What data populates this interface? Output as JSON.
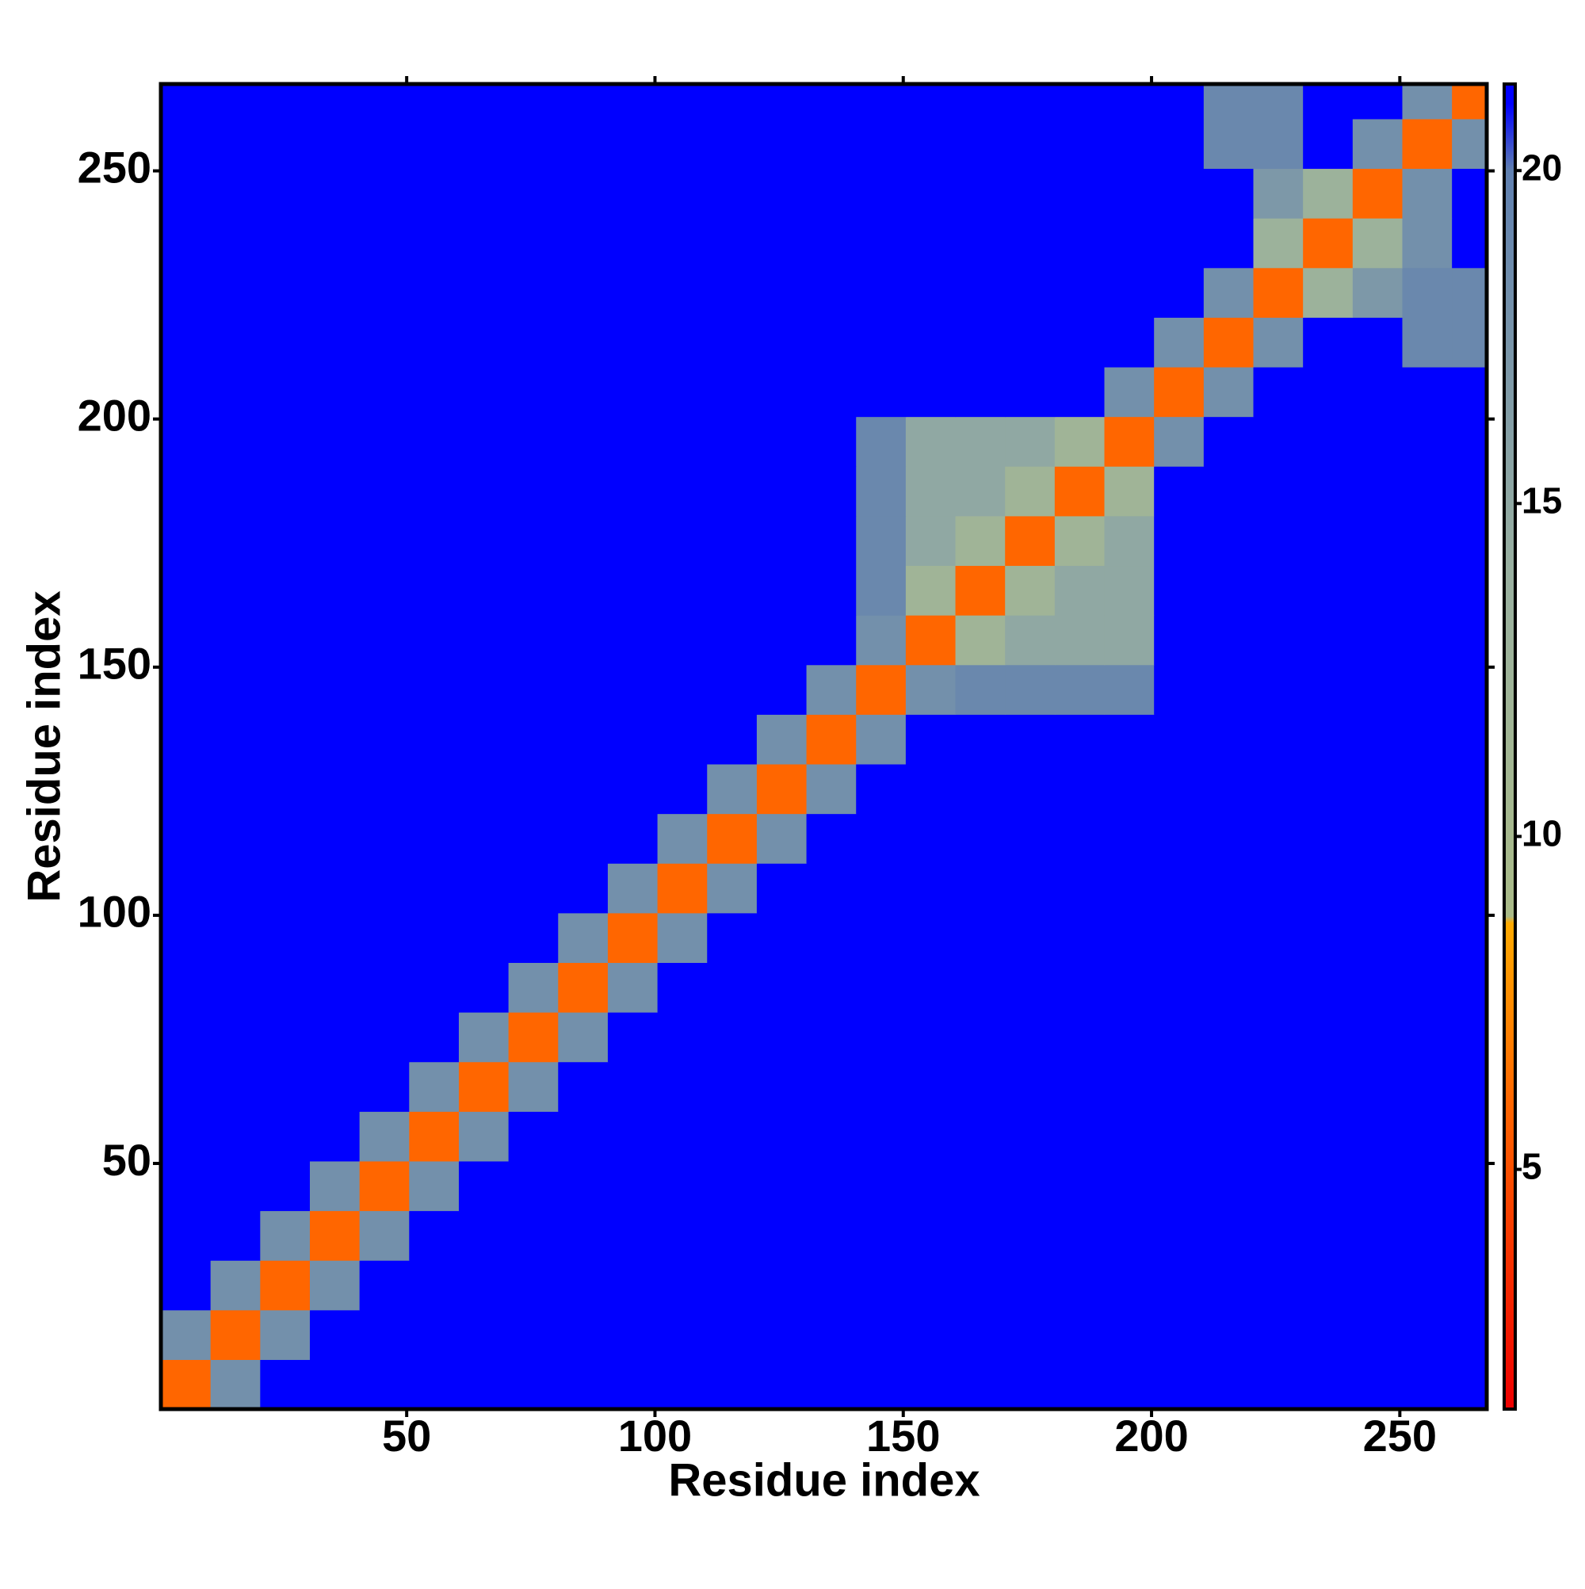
{
  "chart_data": {
    "type": "heatmap",
    "xlabel": "Residue index",
    "ylabel": "Residue index",
    "xlim": [
      0.5,
      267.5
    ],
    "ylim": [
      0.5,
      267.5
    ],
    "xticks": [
      50,
      100,
      150,
      200,
      250
    ],
    "yticks": [
      50,
      100,
      150,
      200,
      250
    ],
    "clim": [
      1.4,
      21.3
    ],
    "cticks": [
      5,
      10,
      15,
      20
    ],
    "colorscale": [
      [
        1.4,
        "#ee0000"
      ],
      [
        6,
        "#ff6600"
      ],
      [
        8.7,
        "#ffaa00"
      ],
      [
        8.8,
        "#aabb88"
      ],
      [
        14,
        "#99b0a0"
      ],
      [
        20,
        "#6080b0"
      ],
      [
        21,
        "#0000ff"
      ]
    ],
    "x_bins": [
      0.5,
      10.5,
      20.5,
      30.5,
      40.5,
      50.5,
      60.5,
      70.5,
      80.5,
      90.5,
      100.5,
      110.5,
      120.5,
      130.5,
      140.5,
      150.5,
      160.5,
      170.5,
      180.5,
      190.5,
      200.5,
      210.5,
      220.5,
      230.5,
      240.5,
      250.5,
      260.5,
      267.5
    ],
    "y_bins": [
      0.5,
      10.5,
      20.5,
      30.5,
      40.5,
      50.5,
      60.5,
      70.5,
      80.5,
      90.5,
      100.5,
      110.5,
      120.5,
      130.5,
      140.5,
      150.5,
      160.5,
      170.5,
      180.5,
      190.5,
      200.5,
      210.5,
      220.5,
      230.5,
      240.5,
      250.5,
      260.5,
      267.5
    ],
    "z": [
      [
        6,
        18,
        21,
        21,
        21,
        21,
        21,
        21,
        21,
        21,
        21,
        21,
        21,
        21,
        21,
        21,
        21,
        21,
        21,
        21,
        21,
        21,
        21,
        21,
        21,
        21,
        21
      ],
      [
        18,
        6,
        18,
        21,
        21,
        21,
        21,
        21,
        21,
        21,
        21,
        21,
        21,
        21,
        21,
        21,
        21,
        21,
        21,
        21,
        21,
        21,
        21,
        21,
        21,
        21,
        21
      ],
      [
        21,
        18,
        6,
        18,
        21,
        21,
        21,
        21,
        21,
        21,
        21,
        21,
        21,
        21,
        21,
        21,
        21,
        21,
        21,
        21,
        21,
        21,
        21,
        21,
        21,
        21,
        21
      ],
      [
        21,
        21,
        18,
        6,
        18,
        21,
        21,
        21,
        21,
        21,
        21,
        21,
        21,
        21,
        21,
        21,
        21,
        21,
        21,
        21,
        21,
        21,
        21,
        21,
        21,
        21,
        21
      ],
      [
        21,
        21,
        21,
        18,
        6,
        18,
        21,
        21,
        21,
        21,
        21,
        21,
        21,
        21,
        21,
        21,
        21,
        21,
        21,
        21,
        21,
        21,
        21,
        21,
        21,
        21,
        21
      ],
      [
        21,
        21,
        21,
        21,
        18,
        6,
        18,
        21,
        21,
        21,
        21,
        21,
        21,
        21,
        21,
        21,
        21,
        21,
        21,
        21,
        21,
        21,
        21,
        21,
        21,
        21,
        21
      ],
      [
        21,
        21,
        21,
        21,
        21,
        18,
        6,
        18,
        21,
        21,
        21,
        21,
        21,
        21,
        21,
        21,
        21,
        21,
        21,
        21,
        21,
        21,
        21,
        21,
        21,
        21,
        21
      ],
      [
        21,
        21,
        21,
        21,
        21,
        21,
        18,
        6,
        18,
        21,
        21,
        21,
        21,
        21,
        21,
        21,
        21,
        21,
        21,
        21,
        21,
        21,
        21,
        21,
        21,
        21,
        21
      ],
      [
        21,
        21,
        21,
        21,
        21,
        21,
        21,
        18,
        6,
        18,
        21,
        21,
        21,
        21,
        21,
        21,
        21,
        21,
        21,
        21,
        21,
        21,
        21,
        21,
        21,
        21,
        21
      ],
      [
        21,
        21,
        21,
        21,
        21,
        21,
        21,
        21,
        18,
        6,
        18,
        21,
        21,
        21,
        21,
        21,
        21,
        21,
        21,
        21,
        21,
        21,
        21,
        21,
        21,
        21,
        21
      ],
      [
        21,
        21,
        21,
        21,
        21,
        21,
        21,
        21,
        21,
        18,
        6,
        18,
        21,
        21,
        21,
        21,
        21,
        21,
        21,
        21,
        21,
        21,
        21,
        21,
        21,
        21,
        21
      ],
      [
        21,
        21,
        21,
        21,
        21,
        21,
        21,
        21,
        21,
        21,
        18,
        6,
        18,
        21,
        21,
        21,
        21,
        21,
        21,
        21,
        21,
        21,
        21,
        21,
        21,
        21,
        21
      ],
      [
        21,
        21,
        21,
        21,
        21,
        21,
        21,
        21,
        21,
        21,
        21,
        18,
        6,
        18,
        21,
        21,
        21,
        21,
        21,
        21,
        21,
        21,
        21,
        21,
        21,
        21,
        21
      ],
      [
        21,
        21,
        21,
        21,
        21,
        21,
        21,
        21,
        21,
        21,
        21,
        21,
        18,
        6,
        18,
        21,
        21,
        21,
        21,
        21,
        21,
        21,
        21,
        21,
        21,
        21,
        21
      ],
      [
        21,
        21,
        21,
        21,
        21,
        21,
        21,
        21,
        21,
        21,
        21,
        21,
        21,
        18,
        6,
        18,
        19,
        19,
        19,
        19,
        21,
        21,
        21,
        21,
        21,
        21,
        21
      ],
      [
        21,
        21,
        21,
        21,
        21,
        21,
        21,
        21,
        21,
        21,
        21,
        21,
        21,
        21,
        18,
        6,
        12,
        15,
        15,
        15,
        21,
        21,
        21,
        21,
        21,
        21,
        21
      ],
      [
        21,
        21,
        21,
        21,
        21,
        21,
        21,
        21,
        21,
        21,
        21,
        21,
        21,
        21,
        19,
        12,
        6,
        12,
        15,
        15,
        21,
        21,
        21,
        21,
        21,
        21,
        21
      ],
      [
        21,
        21,
        21,
        21,
        21,
        21,
        21,
        21,
        21,
        21,
        21,
        21,
        21,
        21,
        19,
        15,
        12,
        6,
        12,
        15,
        21,
        21,
        21,
        21,
        21,
        21,
        21
      ],
      [
        21,
        21,
        21,
        21,
        21,
        21,
        21,
        21,
        21,
        21,
        21,
        21,
        21,
        21,
        19,
        15,
        15,
        12,
        6,
        12,
        21,
        21,
        21,
        21,
        21,
        21,
        21
      ],
      [
        21,
        21,
        21,
        21,
        21,
        21,
        21,
        21,
        21,
        21,
        21,
        21,
        21,
        21,
        19,
        15,
        15,
        15,
        12,
        6,
        18,
        21,
        21,
        21,
        21,
        21,
        21
      ],
      [
        21,
        21,
        21,
        21,
        21,
        21,
        21,
        21,
        21,
        21,
        21,
        21,
        21,
        21,
        21,
        21,
        21,
        21,
        21,
        18,
        6,
        18,
        21,
        21,
        21,
        21,
        21
      ],
      [
        21,
        21,
        21,
        21,
        21,
        21,
        21,
        21,
        21,
        21,
        21,
        21,
        21,
        21,
        21,
        21,
        21,
        21,
        21,
        21,
        18,
        6,
        18,
        21,
        21,
        19,
        19
      ],
      [
        21,
        21,
        21,
        21,
        21,
        21,
        21,
        21,
        21,
        21,
        21,
        21,
        21,
        21,
        21,
        21,
        21,
        21,
        21,
        21,
        21,
        18,
        6,
        13,
        17,
        19,
        19
      ],
      [
        21,
        21,
        21,
        21,
        21,
        21,
        21,
        21,
        21,
        21,
        21,
        21,
        21,
        21,
        21,
        21,
        21,
        21,
        21,
        21,
        21,
        21,
        13,
        6,
        13,
        18,
        21
      ],
      [
        21,
        21,
        21,
        21,
        21,
        21,
        21,
        21,
        21,
        21,
        21,
        21,
        21,
        21,
        21,
        21,
        21,
        21,
        21,
        21,
        21,
        21,
        17,
        13,
        6,
        18,
        21
      ],
      [
        21,
        21,
        21,
        21,
        21,
        21,
        21,
        21,
        21,
        21,
        21,
        21,
        21,
        21,
        21,
        21,
        21,
        21,
        21,
        21,
        21,
        19,
        19,
        21,
        18,
        6,
        18
      ],
      [
        21,
        21,
        21,
        21,
        21,
        21,
        21,
        21,
        21,
        21,
        21,
        21,
        21,
        21,
        21,
        21,
        21,
        21,
        21,
        21,
        21,
        19,
        19,
        21,
        21,
        18,
        6
      ]
    ]
  }
}
